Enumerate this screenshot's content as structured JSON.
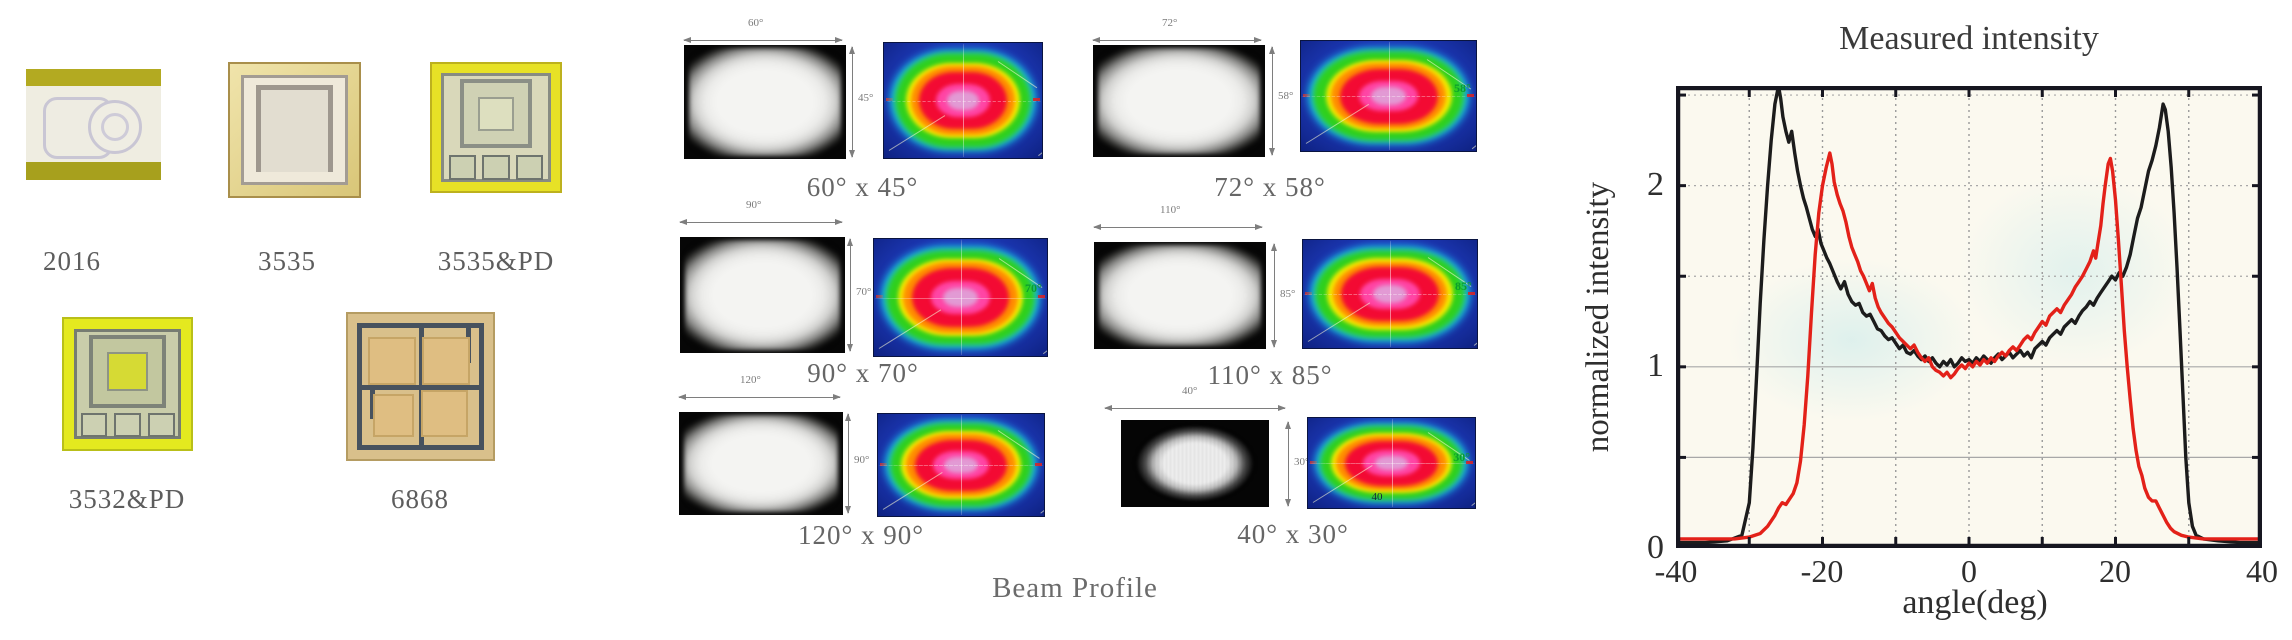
{
  "packages": {
    "items": [
      {
        "label": "2016"
      },
      {
        "label": "3535"
      },
      {
        "label": "3535&PD"
      },
      {
        "label": "3532&PD"
      },
      {
        "label": "6868"
      }
    ]
  },
  "beam": {
    "caption": "Beam Profile",
    "items": [
      {
        "caption": "60° x 45°",
        "w": "60°",
        "h": "45°"
      },
      {
        "caption": "72° x 58°",
        "w": "72°",
        "h": "58°",
        "inner": "58°"
      },
      {
        "caption": "90° x 70°",
        "w": "90°",
        "h": "70°",
        "inner": "70°"
      },
      {
        "caption": "110° x 85°",
        "w": "110°",
        "h": "85°",
        "inner": "85°"
      },
      {
        "caption": "120° x 90°",
        "w": "120°",
        "h": "90°"
      },
      {
        "caption": "40° x 30°",
        "w": "40°",
        "h": "30°",
        "inner": "30°",
        "inner_w": "40"
      }
    ]
  },
  "chart": {
    "title": "Measured intensity",
    "xlabel": "angle(deg)",
    "ylabel": "normalized intensity",
    "xticks": [
      "-40",
      "-20",
      "0",
      "20",
      "40"
    ],
    "yticks": [
      "2",
      "1",
      "0"
    ]
  },
  "chart_data": {
    "type": "line",
    "title": "Measured intensity",
    "xlabel": "angle(deg)",
    "ylabel": "normalized intensity",
    "xlim": [
      -40,
      40
    ],
    "ylim": [
      0,
      2.55
    ],
    "grid": {
      "x_step": 10,
      "y_step": 0.5,
      "legend": "none"
    },
    "frame_color": "#161620",
    "series": [
      {
        "name": "black",
        "color": "#1c1c1c",
        "points": [
          [
            -40,
            0.03
          ],
          [
            -36,
            0.03
          ],
          [
            -33,
            0.04
          ],
          [
            -31,
            0.07
          ],
          [
            -30,
            0.25
          ],
          [
            -29.5,
            0.55
          ],
          [
            -29,
            0.95
          ],
          [
            -28.5,
            1.35
          ],
          [
            -28,
            1.7
          ],
          [
            -27.5,
            2.0
          ],
          [
            -27,
            2.25
          ],
          [
            -26.5,
            2.45
          ],
          [
            -26,
            2.55
          ],
          [
            -25.7,
            2.48
          ],
          [
            -25.4,
            2.38
          ],
          [
            -25,
            2.3
          ],
          [
            -24.6,
            2.24
          ],
          [
            -24.2,
            2.3
          ],
          [
            -23.8,
            2.18
          ],
          [
            -23.4,
            2.08
          ],
          [
            -23,
            2.0
          ],
          [
            -22.6,
            1.93
          ],
          [
            -22.2,
            1.88
          ],
          [
            -21.8,
            1.82
          ],
          [
            -21.4,
            1.76
          ],
          [
            -21,
            1.72
          ],
          [
            -20.6,
            1.76
          ],
          [
            -20.2,
            1.68
          ],
          [
            -19.8,
            1.64
          ],
          [
            -19.4,
            1.6
          ],
          [
            -19,
            1.57
          ],
          [
            -18.5,
            1.52
          ],
          [
            -18,
            1.47
          ],
          [
            -17.5,
            1.43
          ],
          [
            -17,
            1.47
          ],
          [
            -16.5,
            1.4
          ],
          [
            -16,
            1.36
          ],
          [
            -15.5,
            1.34
          ],
          [
            -15,
            1.35
          ],
          [
            -14.5,
            1.3
          ],
          [
            -14,
            1.28
          ],
          [
            -13.5,
            1.29
          ],
          [
            -13,
            1.25
          ],
          [
            -12.5,
            1.21
          ],
          [
            -12,
            1.2
          ],
          [
            -11.5,
            1.17
          ],
          [
            -11,
            1.15
          ],
          [
            -10.5,
            1.16
          ],
          [
            -10,
            1.13
          ],
          [
            -9.5,
            1.1
          ],
          [
            -9,
            1.12
          ],
          [
            -8.5,
            1.08
          ],
          [
            -8,
            1.07
          ],
          [
            -7.5,
            1.09
          ],
          [
            -7,
            1.06
          ],
          [
            -6.5,
            1.04
          ],
          [
            -6,
            1.06
          ],
          [
            -5.5,
            1.03
          ],
          [
            -5,
            1.05
          ],
          [
            -4.5,
            1.02
          ],
          [
            -4,
            1.0
          ],
          [
            -3.5,
            1.03
          ],
          [
            -3,
            1.01
          ],
          [
            -2.5,
            1.04
          ],
          [
            -2,
            1.0
          ],
          [
            -1.5,
            1.02
          ],
          [
            -1,
            1.05
          ],
          [
            -0.5,
            1.03
          ],
          [
            0,
            1.04
          ],
          [
            0.5,
            1.02
          ],
          [
            1,
            1.05
          ],
          [
            1.5,
            1.03
          ],
          [
            2,
            1.06
          ],
          [
            2.5,
            1.04
          ],
          [
            3,
            1.02
          ],
          [
            3.5,
            1.05
          ],
          [
            4,
            1.07
          ],
          [
            4.5,
            1.04
          ],
          [
            5,
            1.06
          ],
          [
            5.5,
            1.08
          ],
          [
            6,
            1.05
          ],
          [
            6.5,
            1.07
          ],
          [
            7,
            1.09
          ],
          [
            7.5,
            1.06
          ],
          [
            8,
            1.08
          ],
          [
            8.5,
            1.05
          ],
          [
            9,
            1.1
          ],
          [
            9.5,
            1.12
          ],
          [
            10,
            1.14
          ],
          [
            10.5,
            1.12
          ],
          [
            11,
            1.16
          ],
          [
            11.5,
            1.18
          ],
          [
            12,
            1.2
          ],
          [
            12.5,
            1.18
          ],
          [
            13,
            1.22
          ],
          [
            13.5,
            1.24
          ],
          [
            14,
            1.26
          ],
          [
            14.5,
            1.24
          ],
          [
            15,
            1.28
          ],
          [
            15.5,
            1.31
          ],
          [
            16,
            1.33
          ],
          [
            16.5,
            1.36
          ],
          [
            17,
            1.34
          ],
          [
            17.5,
            1.38
          ],
          [
            18,
            1.41
          ],
          [
            18.5,
            1.44
          ],
          [
            19,
            1.47
          ],
          [
            19.5,
            1.5
          ],
          [
            20,
            1.48
          ],
          [
            20.5,
            1.52
          ],
          [
            21,
            1.5
          ],
          [
            21.5,
            1.55
          ],
          [
            22,
            1.62
          ],
          [
            22.5,
            1.72
          ],
          [
            23,
            1.82
          ],
          [
            23.5,
            1.88
          ],
          [
            24,
            1.98
          ],
          [
            24.5,
            2.08
          ],
          [
            25,
            2.14
          ],
          [
            25.5,
            2.22
          ],
          [
            26,
            2.32
          ],
          [
            26.5,
            2.45
          ],
          [
            26.8,
            2.42
          ],
          [
            27.2,
            2.3
          ],
          [
            27.6,
            2.1
          ],
          [
            28,
            1.85
          ],
          [
            28.4,
            1.55
          ],
          [
            28.8,
            1.2
          ],
          [
            29.2,
            0.85
          ],
          [
            29.6,
            0.5
          ],
          [
            30,
            0.25
          ],
          [
            30.5,
            0.12
          ],
          [
            31,
            0.07
          ],
          [
            32,
            0.05
          ],
          [
            34,
            0.04
          ],
          [
            37,
            0.03
          ],
          [
            40,
            0.03
          ]
        ]
      },
      {
        "name": "red",
        "color": "#e32119",
        "points": [
          [
            -40,
            0.05
          ],
          [
            -36,
            0.05
          ],
          [
            -32,
            0.05
          ],
          [
            -30,
            0.06
          ],
          [
            -28.5,
            0.08
          ],
          [
            -27.5,
            0.12
          ],
          [
            -26.5,
            0.18
          ],
          [
            -26,
            0.22
          ],
          [
            -25.5,
            0.25
          ],
          [
            -25,
            0.24
          ],
          [
            -24.5,
            0.27
          ],
          [
            -24,
            0.3
          ],
          [
            -23.5,
            0.36
          ],
          [
            -23,
            0.48
          ],
          [
            -22.5,
            0.68
          ],
          [
            -22,
            0.95
          ],
          [
            -21.5,
            1.3
          ],
          [
            -21,
            1.62
          ],
          [
            -20.5,
            1.85
          ],
          [
            -20,
            2.0
          ],
          [
            -19.5,
            2.1
          ],
          [
            -19,
            2.18
          ],
          [
            -18.7,
            2.12
          ],
          [
            -18.4,
            2.02
          ],
          [
            -18,
            1.95
          ],
          [
            -17.6,
            1.9
          ],
          [
            -17.2,
            1.86
          ],
          [
            -16.8,
            1.8
          ],
          [
            -16.4,
            1.72
          ],
          [
            -16,
            1.66
          ],
          [
            -15.6,
            1.62
          ],
          [
            -15.2,
            1.58
          ],
          [
            -14.8,
            1.53
          ],
          [
            -14.4,
            1.5
          ],
          [
            -14,
            1.46
          ],
          [
            -13.6,
            1.42
          ],
          [
            -13.2,
            1.46
          ],
          [
            -12.8,
            1.38
          ],
          [
            -12.4,
            1.33
          ],
          [
            -12,
            1.3
          ],
          [
            -11.5,
            1.27
          ],
          [
            -11,
            1.24
          ],
          [
            -10.5,
            1.22
          ],
          [
            -10,
            1.19
          ],
          [
            -9.5,
            1.16
          ],
          [
            -9,
            1.14
          ],
          [
            -8.5,
            1.12
          ],
          [
            -8,
            1.1
          ],
          [
            -7.5,
            1.12
          ],
          [
            -7,
            1.08
          ],
          [
            -6.5,
            1.05
          ],
          [
            -6,
            1.03
          ],
          [
            -5.5,
            1.05
          ],
          [
            -5,
            1.0
          ],
          [
            -4.5,
            0.98
          ],
          [
            -4,
            0.97
          ],
          [
            -3.5,
            0.95
          ],
          [
            -3,
            0.97
          ],
          [
            -2.5,
            0.94
          ],
          [
            -2,
            0.96
          ],
          [
            -1.5,
            0.99
          ],
          [
            -1,
            1.01
          ],
          [
            -0.5,
            0.99
          ],
          [
            0,
            1.02
          ],
          [
            0.5,
            1.0
          ],
          [
            1,
            1.03
          ],
          [
            1.5,
            1.01
          ],
          [
            2,
            1.04
          ],
          [
            2.5,
            1.02
          ],
          [
            3,
            1.05
          ],
          [
            3.5,
            1.03
          ],
          [
            4,
            1.06
          ],
          [
            4.5,
            1.08
          ],
          [
            5,
            1.06
          ],
          [
            5.5,
            1.09
          ],
          [
            6,
            1.11
          ],
          [
            6.5,
            1.09
          ],
          [
            7,
            1.12
          ],
          [
            7.5,
            1.15
          ],
          [
            8,
            1.17
          ],
          [
            8.5,
            1.15
          ],
          [
            9,
            1.19
          ],
          [
            9.5,
            1.22
          ],
          [
            10,
            1.25
          ],
          [
            10.5,
            1.23
          ],
          [
            11,
            1.28
          ],
          [
            11.5,
            1.3
          ],
          [
            12,
            1.32
          ],
          [
            12.5,
            1.3
          ],
          [
            13,
            1.34
          ],
          [
            13.5,
            1.37
          ],
          [
            14,
            1.4
          ],
          [
            14.5,
            1.44
          ],
          [
            15,
            1.47
          ],
          [
            15.5,
            1.5
          ],
          [
            16,
            1.54
          ],
          [
            16.5,
            1.58
          ],
          [
            17,
            1.64
          ],
          [
            17.3,
            1.6
          ],
          [
            17.6,
            1.68
          ],
          [
            18,
            1.78
          ],
          [
            18.3,
            1.9
          ],
          [
            18.6,
            2.0
          ],
          [
            19,
            2.12
          ],
          [
            19.3,
            2.15
          ],
          [
            19.6,
            2.08
          ],
          [
            20,
            1.92
          ],
          [
            20.4,
            1.7
          ],
          [
            20.8,
            1.45
          ],
          [
            21.2,
            1.2
          ],
          [
            21.6,
            1.0
          ],
          [
            22,
            0.82
          ],
          [
            22.4,
            0.66
          ],
          [
            22.8,
            0.54
          ],
          [
            23.2,
            0.45
          ],
          [
            23.6,
            0.4
          ],
          [
            24,
            0.33
          ],
          [
            24.5,
            0.28
          ],
          [
            25,
            0.26
          ],
          [
            25.5,
            0.26
          ],
          [
            26,
            0.22
          ],
          [
            26.5,
            0.18
          ],
          [
            27,
            0.14
          ],
          [
            27.5,
            0.11
          ],
          [
            28,
            0.09
          ],
          [
            29,
            0.07
          ],
          [
            30,
            0.06
          ],
          [
            32,
            0.05
          ],
          [
            35,
            0.05
          ],
          [
            38,
            0.05
          ],
          [
            40,
            0.05
          ]
        ]
      }
    ]
  }
}
